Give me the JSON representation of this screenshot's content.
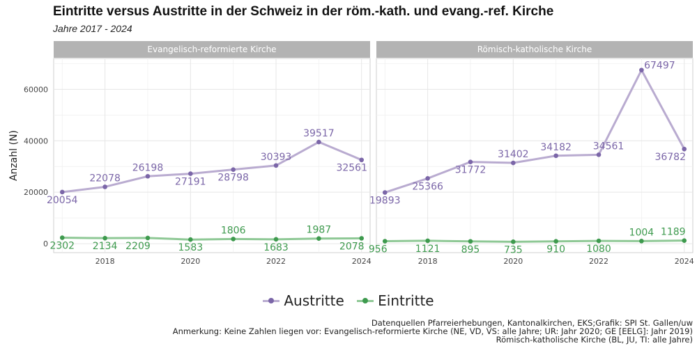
{
  "title": "Eintritte versus Austritte in der Schweiz in der röm.-kath. und evang.-ref. Kirche",
  "subtitle": "Jahre 2017 - 2024",
  "colors": {
    "austritte": "#7b66a8",
    "austritte_line": "#b9abd0",
    "eintritte": "#3e9a4e",
    "eintritte_line": "#8ec895",
    "strip": "#b3b3b3",
    "grid": "#e6e6e6"
  },
  "legend": {
    "items": [
      "Austritte",
      "Eintritte"
    ],
    "key_icon": "a",
    "position": "bottom"
  },
  "notes": [
    "Datenquellen Pfarreierhebungen, Kantonalkirchen, EKS;Grafik: SPI St. Gallen/uw",
    "Anmerkung: Keine Zahlen liegen vor: Evangelisch-reformierte Kirche (NE, VD, VS: alle Jahre; UR: Jahr 2020; GE [EELG]: Jahr 2019)",
    "Römisch-katholische Kirche (BL, JU, TI: alle Jahre)"
  ],
  "chart_data": {
    "type": "line",
    "ylabel": "Anzahl (N)",
    "xlabel": "",
    "xlim": [
      2016.8,
      2024.2
    ],
    "ylim": [
      -3500,
      72000
    ],
    "x_ticks": [
      2018,
      2020,
      2022,
      2024
    ],
    "y_ticks": [
      0,
      20000,
      40000,
      60000
    ],
    "grid": true,
    "panels": [
      {
        "name": "Evangelisch-reformierte Kirche",
        "x": [
          2017,
          2018,
          2019,
          2020,
          2021,
          2022,
          2023,
          2024
        ],
        "series": [
          {
            "name": "Austritte",
            "values": [
              20054,
              22078,
              26198,
              27191,
              28798,
              30393,
              39517,
              32561
            ]
          },
          {
            "name": "Eintritte",
            "values": [
              2302,
              2134,
              2209,
              1583,
              1806,
              1683,
              1987,
              2078
            ]
          }
        ]
      },
      {
        "name": "Römisch-katholische Kirche",
        "x": [
          2017,
          2018,
          2019,
          2020,
          2021,
          2022,
          2023,
          2024
        ],
        "series": [
          {
            "name": "Austritte",
            "values": [
              19893,
              25366,
              31772,
              31402,
              34182,
              34561,
              67497,
              36782
            ]
          },
          {
            "name": "Eintritte",
            "values": [
              956,
              1121,
              895,
              735,
              910,
              1080,
              1004,
              1189
            ]
          }
        ]
      }
    ]
  }
}
